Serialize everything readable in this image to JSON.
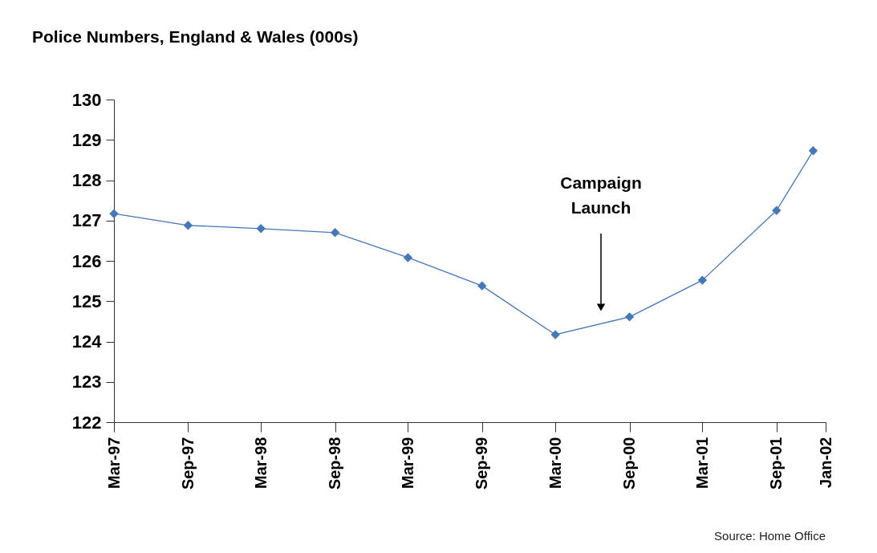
{
  "chart_data": {
    "type": "line",
    "title": "Police Numbers, England & Wales (000s)",
    "x": [
      "1997-03",
      "1997-09",
      "1998-03",
      "1998-09",
      "1999-03",
      "1999-09",
      "2000-03",
      "2000-09",
      "2001-03",
      "2001-09",
      "2001-12"
    ],
    "series": [
      {
        "color": "#4677b7",
        "values": [
          127.17,
          126.88,
          126.8,
          126.7,
          126.08,
          125.38,
          124.17,
          124.61,
          125.52,
          127.25,
          128.73
        ]
      }
    ],
    "xlim": [
      "1997-03",
      "2002-01"
    ],
    "xticks": [
      {
        "value": "1997-03",
        "label": "Mar-97"
      },
      {
        "value": "1997-09",
        "label": "Sep-97"
      },
      {
        "value": "1998-03",
        "label": "Mar-98"
      },
      {
        "value": "1998-09",
        "label": "Sep-98"
      },
      {
        "value": "1999-03",
        "label": "Mar-99"
      },
      {
        "value": "1999-09",
        "label": "Sep-99"
      },
      {
        "value": "2000-03",
        "label": "Mar-00"
      },
      {
        "value": "2000-09",
        "label": "Sep-00"
      },
      {
        "value": "2001-03",
        "label": "Mar-01"
      },
      {
        "value": "2001-09",
        "label": "Sep-01"
      },
      {
        "value": "2002-01",
        "label": "Jan-02"
      }
    ],
    "ylim": [
      122,
      130
    ],
    "yticks": [
      122,
      123,
      124,
      125,
      126,
      127,
      128,
      129,
      130
    ],
    "grid": false,
    "marker": "diamond",
    "line_style": "solid",
    "annotations": [
      "Campaign Launch",
      "Source: Home Office"
    ]
  }
}
